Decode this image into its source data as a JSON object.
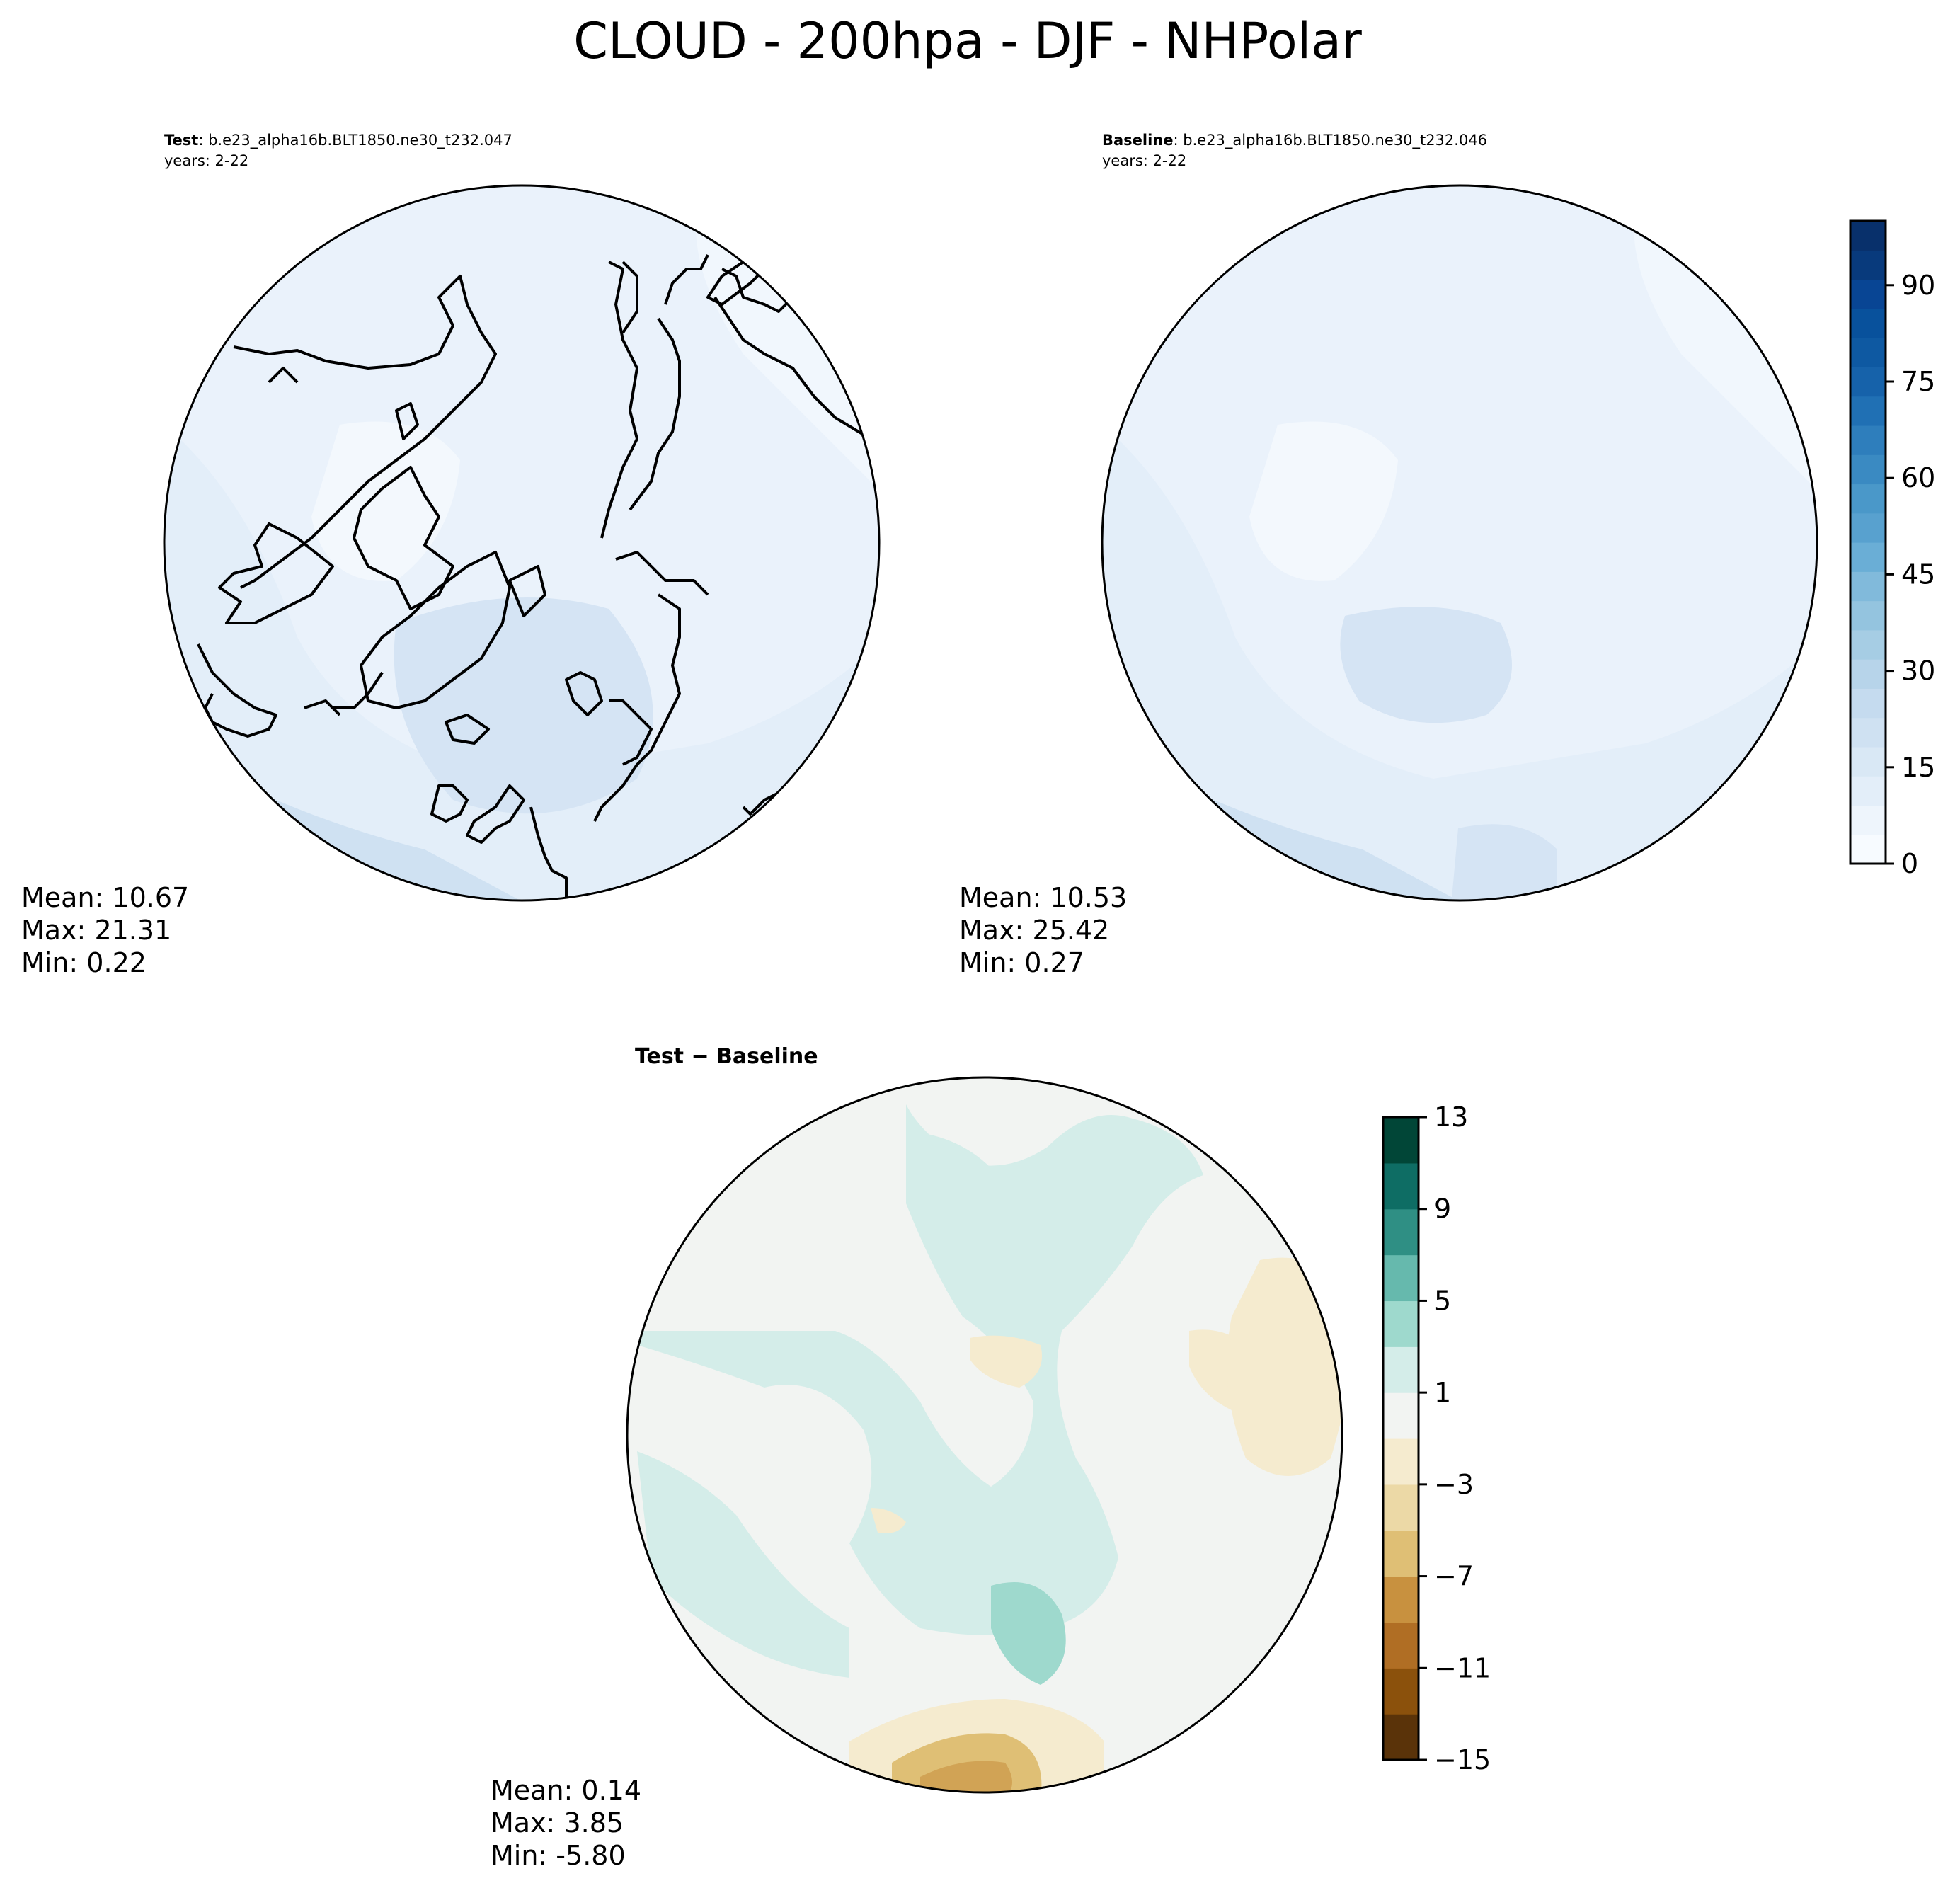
{
  "figure": {
    "title": "CLOUD - 200hpa - DJF - NHPolar"
  },
  "panels": {
    "test": {
      "label_bold": "Test",
      "case": ": b.e23_alpha16b.BLT1850.ne30_t232.047",
      "years": "years: 2-22",
      "stats": {
        "mean": "Mean: 10.67",
        "max": "Max: 21.31",
        "min": "Min:  0.22"
      }
    },
    "baseline": {
      "label_bold": "Baseline",
      "case": ": b.e23_alpha16b.BLT1850.ne30_t232.046",
      "years": "years: 2-22",
      "stats": {
        "mean": "Mean: 10.53",
        "max": "Max: 25.42",
        "min": "Min:  0.27"
      }
    },
    "diff": {
      "label": "Test − Baseline",
      "stats": {
        "mean": "Mean:  0.14",
        "max": "Max:  3.85",
        "min": "Min: -5.80"
      }
    }
  },
  "colorbars": {
    "main": {
      "cmap": "Blues",
      "range": [
        0,
        100
      ],
      "ticks": [
        "0",
        "15",
        "30",
        "45",
        "60",
        "75",
        "90"
      ],
      "tick_values": [
        0,
        15,
        30,
        45,
        60,
        75,
        90
      ],
      "colors": [
        "#f7fbff",
        "#eef5fc",
        "#e3eef9",
        "#d9e8f5",
        "#cfe1f2",
        "#c5dbef",
        "#b7d4ea",
        "#a6cde4",
        "#94c4df",
        "#81badb",
        "#6aaed6",
        "#58a1cf",
        "#4a98c9",
        "#3a8ac2",
        "#2e7ebc",
        "#2070b4",
        "#1662aa",
        "#0e59a2",
        "#08519c",
        "#084594",
        "#083a7c",
        "#08306b"
      ]
    },
    "diff": {
      "cmap": "BrBG",
      "range": [
        -15,
        13
      ],
      "ticks": [
        "−15",
        "−11",
        "−7",
        "−3",
        "1",
        "5",
        "9",
        "13"
      ],
      "tick_values": [
        -15,
        -11,
        -7,
        -3,
        1,
        5,
        9,
        13
      ],
      "colors": [
        "#5a3309",
        "#8b510c",
        "#b06e24",
        "#c8913f",
        "#dfbf75",
        "#ecd9a6",
        "#f5ebcf",
        "#f2f4f2",
        "#d4ede9",
        "#9ed9cd",
        "#66b9ad",
        "#2f8f84",
        "#0e6d64",
        "#014637"
      ]
    }
  },
  "colors": {
    "test_fill": "#dde9f6",
    "baseline_fill": "#e0ebf7",
    "diff_fill": "#f2f4f2",
    "ocean_light": "#eef5fc"
  }
}
